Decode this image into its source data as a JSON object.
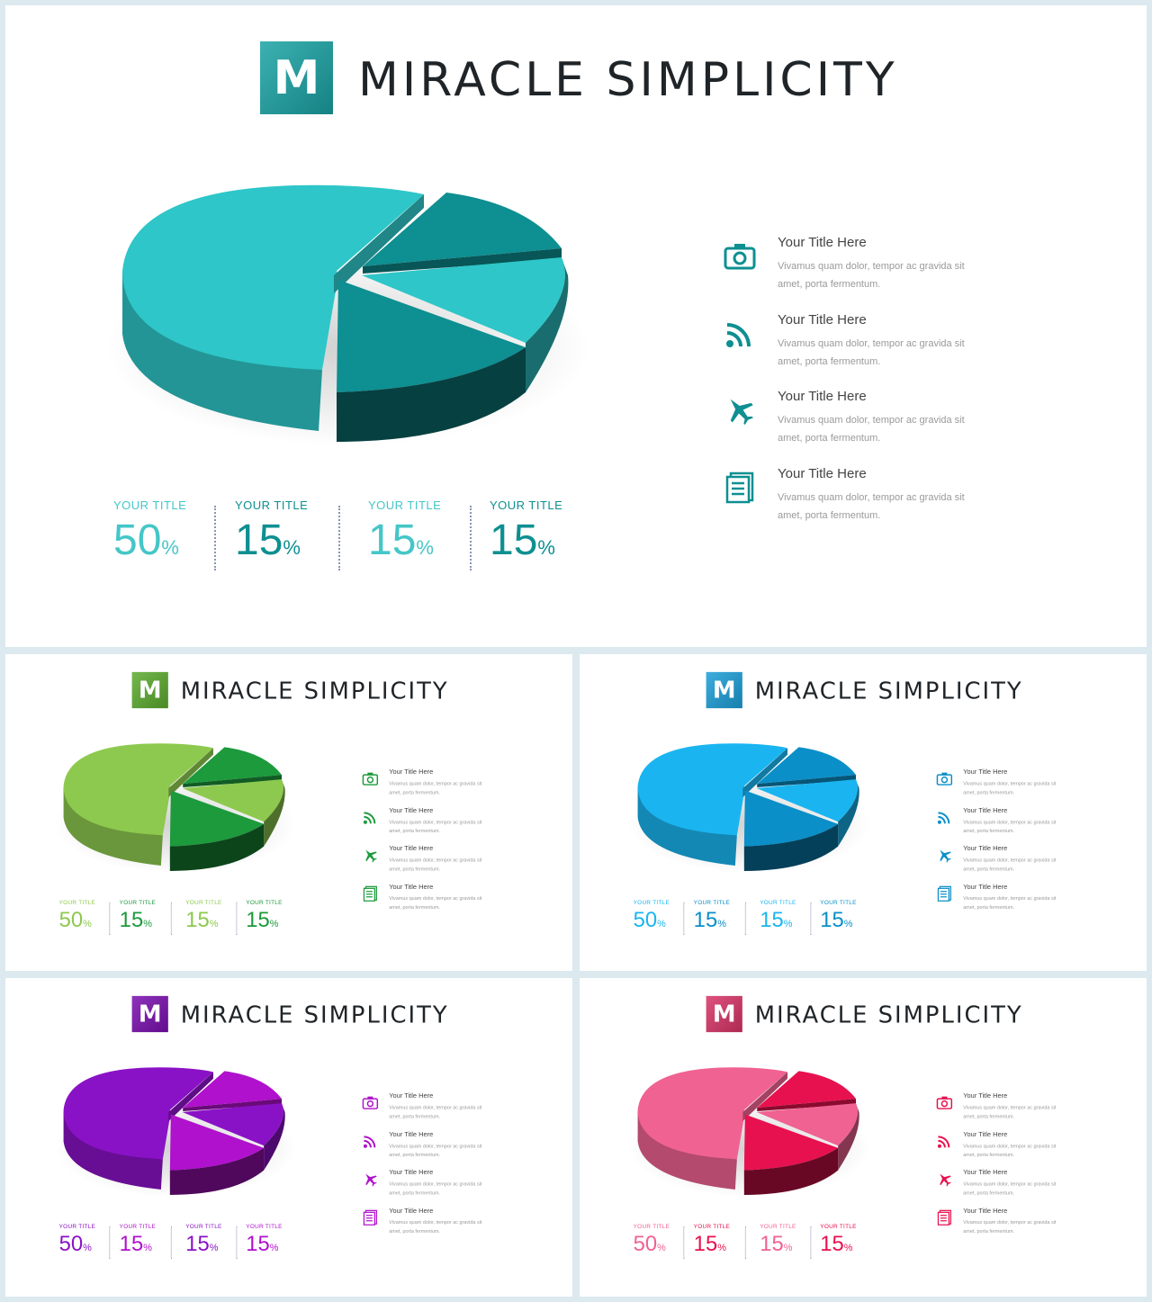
{
  "feature_desc": "Vivamus quam dolor, tempor ac gravida sit amet, porta fermentum.",
  "slides": [
    {
      "id": "teal",
      "logo": "M",
      "brand": "MIRACLE SIMPLICITY",
      "colors": {
        "logo": "#1aa3a4",
        "accent": "#2ec6c8",
        "dark": "#0e8f91",
        "light_label": "#45c6c8"
      },
      "stats": [
        {
          "label": "YOUR TITLE",
          "value": "50",
          "unit": "%"
        },
        {
          "label": "YOUR TITLE",
          "value": "15",
          "unit": "%"
        },
        {
          "label": "YOUR TITLE",
          "value": "15",
          "unit": "%"
        },
        {
          "label": "YOUR TITLE",
          "value": "15",
          "unit": "%"
        }
      ],
      "features": [
        {
          "icon": "camera-icon",
          "title": "Your Title Here"
        },
        {
          "icon": "rss-icon",
          "title": "Your Title Here"
        },
        {
          "icon": "airplane-icon",
          "title": "Your Title Here"
        },
        {
          "icon": "document-icon",
          "title": "Your Title Here"
        }
      ]
    },
    {
      "id": "green",
      "logo": "M",
      "brand": "MIRACLE SIMPLICITY",
      "colors": {
        "logo": "#5cab2e",
        "accent": "#8dc94e",
        "dark": "#1c9a3c",
        "light_label": "#8dc94e"
      },
      "stats": [
        {
          "label": "YOUR TITLE",
          "value": "50",
          "unit": "%"
        },
        {
          "label": "YOUR TITLE",
          "value": "15",
          "unit": "%"
        },
        {
          "label": "YOUR TITLE",
          "value": "15",
          "unit": "%"
        },
        {
          "label": "YOUR TITLE",
          "value": "15",
          "unit": "%"
        }
      ],
      "features": [
        {
          "icon": "camera-icon",
          "title": "Your Title Here"
        },
        {
          "icon": "rss-icon",
          "title": "Your Title Here"
        },
        {
          "icon": "airplane-icon",
          "title": "Your Title Here"
        },
        {
          "icon": "document-icon",
          "title": "Your Title Here"
        }
      ]
    },
    {
      "id": "blue",
      "logo": "M",
      "brand": "MIRACLE SIMPLICITY",
      "colors": {
        "logo": "#1c9fd8",
        "accent": "#1ab5f0",
        "dark": "#0a8fc8",
        "light_label": "#1ab5f0"
      },
      "stats": [
        {
          "label": "YOUR TITLE",
          "value": "50",
          "unit": "%"
        },
        {
          "label": "YOUR TITLE",
          "value": "15",
          "unit": "%"
        },
        {
          "label": "YOUR TITLE",
          "value": "15",
          "unit": "%"
        },
        {
          "label": "YOUR TITLE",
          "value": "15",
          "unit": "%"
        }
      ],
      "features": [
        {
          "icon": "camera-icon",
          "title": "Your Title Here"
        },
        {
          "icon": "rss-icon",
          "title": "Your Title Here"
        },
        {
          "icon": "airplane-icon",
          "title": "Your Title Here"
        },
        {
          "icon": "document-icon",
          "title": "Your Title Here"
        }
      ]
    },
    {
      "id": "purple",
      "logo": "M",
      "brand": "MIRACLE SIMPLICITY",
      "colors": {
        "logo": "#7a0fb0",
        "accent": "#8a12c6",
        "dark": "#b011cc",
        "light_label": "#8a12c6"
      },
      "stats": [
        {
          "label": "YOUR TITLE",
          "value": "50",
          "unit": "%"
        },
        {
          "label": "YOUR TITLE",
          "value": "15",
          "unit": "%"
        },
        {
          "label": "YOUR TITLE",
          "value": "15",
          "unit": "%"
        },
        {
          "label": "YOUR TITLE",
          "value": "15",
          "unit": "%"
        }
      ],
      "features": [
        {
          "icon": "camera-icon",
          "title": "Your Title Here"
        },
        {
          "icon": "rss-icon",
          "title": "Your Title Here"
        },
        {
          "icon": "airplane-icon",
          "title": "Your Title Here"
        },
        {
          "icon": "document-icon",
          "title": "Your Title Here"
        }
      ]
    },
    {
      "id": "pink",
      "logo": "M",
      "brand": "MIRACLE SIMPLICITY",
      "colors": {
        "logo": "#d83466",
        "accent": "#f06292",
        "dark": "#e8114f",
        "light_label": "#f06292"
      },
      "stats": [
        {
          "label": "YOUR TITLE",
          "value": "50",
          "unit": "%"
        },
        {
          "label": "YOUR TITLE",
          "value": "15",
          "unit": "%"
        },
        {
          "label": "YOUR TITLE",
          "value": "15",
          "unit": "%"
        },
        {
          "label": "YOUR TITLE",
          "value": "15",
          "unit": "%"
        }
      ],
      "features": [
        {
          "icon": "camera-icon",
          "title": "Your Title Here"
        },
        {
          "icon": "rss-icon",
          "title": "Your Title Here"
        },
        {
          "icon": "airplane-icon",
          "title": "Your Title Here"
        },
        {
          "icon": "document-icon",
          "title": "Your Title Here"
        }
      ]
    }
  ]
}
